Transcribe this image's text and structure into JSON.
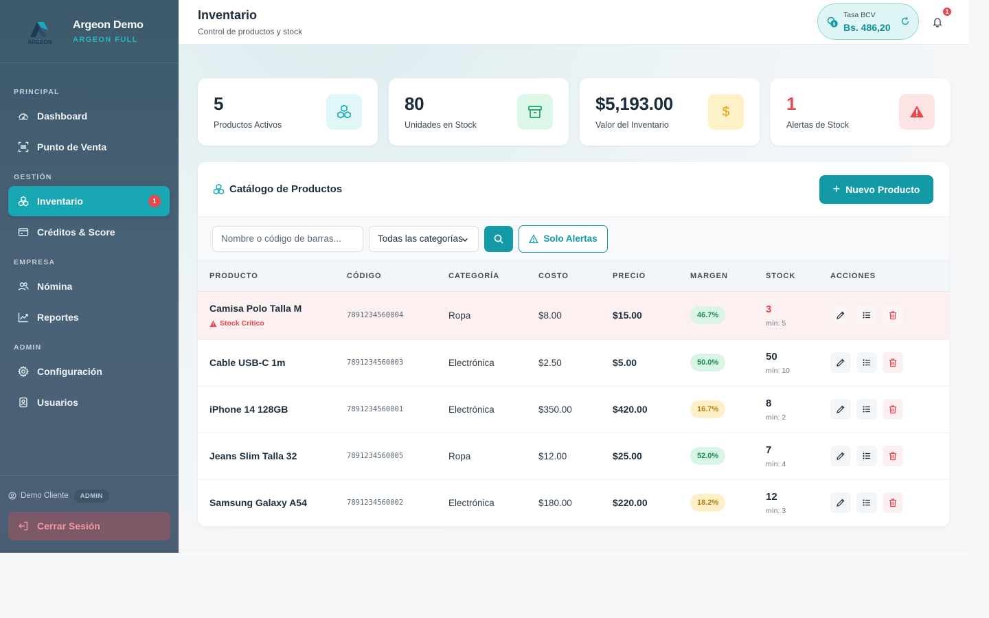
{
  "brand": {
    "title": "Argeon Demo",
    "subtitle": "ARGEON FULL",
    "logo_text": "ARGEON"
  },
  "sidebar": {
    "sections": [
      {
        "label": "PRINCIPAL"
      },
      {
        "label": "GESTIÓN"
      },
      {
        "label": "EMPRESA"
      },
      {
        "label": "ADMIN"
      }
    ],
    "items": [
      {
        "label": "Dashboard",
        "icon": "gauge-icon"
      },
      {
        "label": "Punto de Venta",
        "icon": "barcode-icon"
      },
      {
        "label": "Inventario",
        "icon": "boxes-icon",
        "badge": "1",
        "active": true
      },
      {
        "label": "Créditos & Score",
        "icon": "card-icon"
      },
      {
        "label": "Nómina",
        "icon": "users-icon"
      },
      {
        "label": "Reportes",
        "icon": "chart-line-icon"
      },
      {
        "label": "Configuración",
        "icon": "gear-icon"
      },
      {
        "label": "Usuarios",
        "icon": "id-badge-icon"
      }
    ],
    "user": {
      "name": "Demo Cliente",
      "role": "ADMIN"
    },
    "logout_label": "Cerrar Sesión"
  },
  "header": {
    "title": "Inventario",
    "subtitle": "Control de productos y stock",
    "rate_label": "Tasa BCV",
    "rate_value": "Bs. 486,20",
    "notifications_count": "1"
  },
  "stats": [
    {
      "value": "5",
      "label": "Productos Activos",
      "icon": "boxes-icon",
      "color": "#17a8b5",
      "bg": "#e0f6f7"
    },
    {
      "value": "80",
      "label": "Unidades en Stock",
      "icon": "archive-icon",
      "color": "#1aa364",
      "bg": "#dcf6e8"
    },
    {
      "value": "$5,193.00",
      "label": "Valor del Inventario",
      "icon": "dollar-icon",
      "color": "#e3a10f",
      "bg": "#fdf1c8"
    },
    {
      "value": "1",
      "label": "Alertas de Stock",
      "icon": "warning-icon",
      "color": "#e5484d",
      "bg": "#fde3e4"
    }
  ],
  "catalog": {
    "title": "Catálogo de Productos",
    "new_button": "Nuevo Producto",
    "search_placeholder": "Nombre o código de barras...",
    "category_select": "Todas las categorías",
    "alerts_button": "Solo Alertas",
    "columns": [
      "PRODUCTO",
      "CÓDIGO",
      "CATEGORÍA",
      "COSTO",
      "PRECIO",
      "MARGEN",
      "STOCK",
      "ACCIONES"
    ],
    "critical_label": "Stock Crítico",
    "rows": [
      {
        "name": "Camisa Polo Talla M",
        "code": "7891234560004",
        "category": "Ropa",
        "cost": "$8.00",
        "price": "$15.00",
        "margin": "46.7%",
        "margin_tone": "green",
        "stock": "3",
        "min": "mín: 5",
        "critical": true
      },
      {
        "name": "Cable USB-C 1m",
        "code": "7891234560003",
        "category": "Electrónica",
        "cost": "$2.50",
        "price": "$5.00",
        "margin": "50.0%",
        "margin_tone": "green",
        "stock": "50",
        "min": "mín: 10",
        "critical": false
      },
      {
        "name": "iPhone 14 128GB",
        "code": "7891234560001",
        "category": "Electrónica",
        "cost": "$350.00",
        "price": "$420.00",
        "margin": "16.7%",
        "margin_tone": "yellow",
        "stock": "8",
        "min": "mín: 2",
        "critical": false
      },
      {
        "name": "Jeans Slim Talla 32",
        "code": "7891234560005",
        "category": "Ropa",
        "cost": "$12.00",
        "price": "$25.00",
        "margin": "52.0%",
        "margin_tone": "green",
        "stock": "7",
        "min": "mín: 4",
        "critical": false
      },
      {
        "name": "Samsung Galaxy A54",
        "code": "7891234560002",
        "category": "Electrónica",
        "cost": "$180.00",
        "price": "$220.00",
        "margin": "18.2%",
        "margin_tone": "yellow",
        "stock": "12",
        "min": "mín: 3",
        "critical": false
      }
    ]
  }
}
